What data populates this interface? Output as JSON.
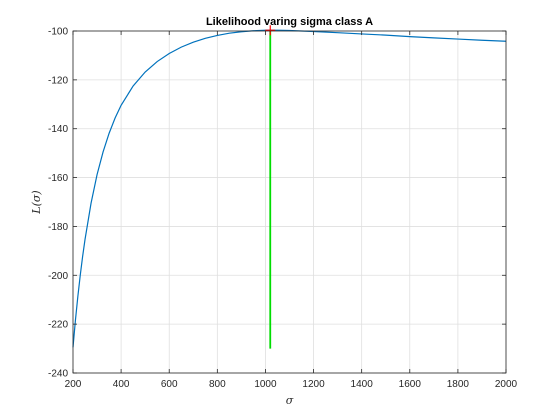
{
  "chart_data": {
    "type": "line",
    "title": "Likelihood varing sigma class A",
    "xlabel": "σ",
    "ylabel": "L(σ)",
    "xlim": [
      200,
      2000
    ],
    "ylim": [
      -240,
      -100
    ],
    "xticks": [
      200,
      400,
      600,
      800,
      1000,
      1200,
      1400,
      1600,
      1800,
      2000
    ],
    "yticks": [
      -240,
      -220,
      -200,
      -180,
      -160,
      -140,
      -120,
      -100
    ],
    "grid": true,
    "series": [
      {
        "color": "#0072BD",
        "x": [
          200,
          210,
          220,
          230,
          240,
          250,
          275,
          300,
          325,
          350,
          375,
          400,
          450,
          500,
          550,
          600,
          650,
          700,
          750,
          800,
          850,
          900,
          950,
          1000,
          1020,
          1050,
          1100,
          1200,
          1300,
          1400,
          1500,
          1600,
          1700,
          1800,
          1900,
          2000
        ],
        "y": [
          -229.5,
          -218.5,
          -208.8,
          -200.1,
          -192.3,
          -185.3,
          -170.5,
          -158.8,
          -149.5,
          -141.9,
          -135.6,
          -130.4,
          -122.5,
          -116.8,
          -112.5,
          -109.2,
          -106.6,
          -104.6,
          -103.0,
          -101.8,
          -100.9,
          -100.3,
          -99.9,
          -99.7,
          -99.7,
          -99.7,
          -99.8,
          -100.2,
          -100.7,
          -101.2,
          -101.7,
          -102.3,
          -102.8,
          -103.3,
          -103.8,
          -104.2
        ]
      }
    ],
    "vertical_line": {
      "x": 1020,
      "y_from": -230,
      "y_to": -100,
      "color": "#00DD00"
    },
    "marker": {
      "x": 1020,
      "y": -99.7,
      "symbol": "+",
      "color": "#FF0000"
    }
  }
}
